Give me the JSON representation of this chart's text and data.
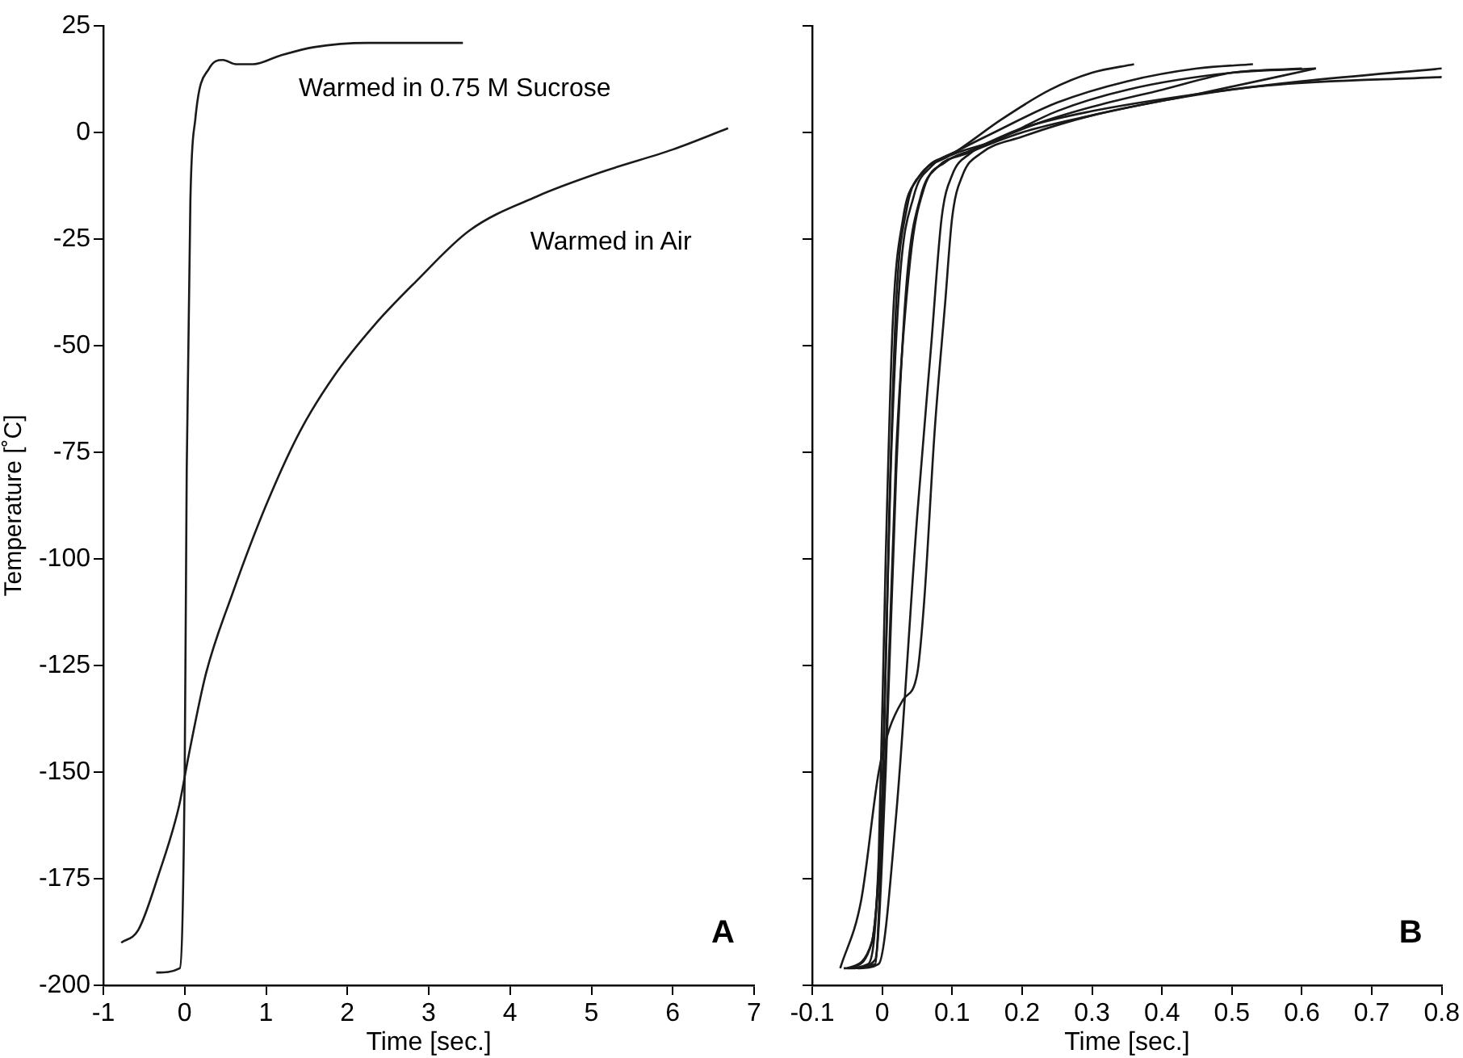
{
  "chart_data": [
    {
      "type": "line",
      "xlabel": "Time [sec.]",
      "ylabel": "Temperature [˚C]",
      "xlim": [
        -1,
        7
      ],
      "xticks": [
        -1,
        0,
        1,
        2,
        3,
        4,
        5,
        6,
        7
      ],
      "ylim": [
        -200,
        25
      ],
      "yticks": [
        -200,
        -175,
        -150,
        -125,
        -100,
        -75,
        -50,
        -25,
        0,
        25
      ],
      "grid": false,
      "legend": false,
      "annotations": [
        "A"
      ],
      "series": [
        {
          "name": "Warmed in 0.75 M Sucrose",
          "color": "#1a1a1a",
          "x": [
            -0.35,
            -0.06,
            0,
            0.025,
            0.07,
            0.13,
            0.3,
            0.47,
            0.63,
            0.84,
            1.17,
            1.59,
            2.25,
            3.42
          ],
          "values": [
            -197,
            -196,
            -150,
            -79,
            -16,
            3,
            15,
            17,
            16,
            16,
            18,
            20,
            21,
            21
          ]
        },
        {
          "name": "Warmed in Air",
          "color": "#1a1a1a",
          "x": [
            -0.78,
            -0.57,
            -0.32,
            -0.07,
            0.05,
            0.26,
            0.59,
            1.01,
            1.42,
            1.84,
            2.34,
            2.84,
            3.5,
            4.33,
            5.17,
            6,
            6.68
          ],
          "values": [
            -190,
            -187,
            -174,
            -158,
            -146,
            -127,
            -108,
            -87,
            -70,
            -57,
            -45,
            -35,
            -23,
            -15,
            -9,
            -4,
            1
          ]
        }
      ]
    },
    {
      "type": "line",
      "xlabel": "Time [sec.]",
      "xlim": [
        -0.1,
        0.8
      ],
      "xticks": [
        -0.1,
        0,
        0.1,
        0.2,
        0.3,
        0.4,
        0.5,
        0.6,
        0.7,
        0.8
      ],
      "ylim": [
        -200,
        25
      ],
      "yticks": [
        -200,
        -175,
        -150,
        -125,
        -100,
        -75,
        -50,
        -25,
        0,
        25
      ],
      "tick_labels": "x",
      "grid": false,
      "legend": false,
      "annotations": [
        "B"
      ],
      "series": [
        {
          "color": "#1a1a1a",
          "x": [
            -0.055,
            -0.02,
            -0.005,
            0.005,
            0.015,
            0.03,
            0.05,
            0.09,
            0.16,
            0.25,
            0.35,
            0.5,
            0.62
          ],
          "values": [
            -196,
            -195,
            -170,
            -100,
            -45,
            -20,
            -11,
            -6,
            -2,
            5,
            10,
            14,
            15
          ]
        },
        {
          "color": "#1a1a1a",
          "x": [
            -0.05,
            -0.01,
            0,
            0.01,
            0.02,
            0.035,
            0.06,
            0.1,
            0.16,
            0.25,
            0.35,
            0.45,
            0.53
          ],
          "values": [
            -196,
            -195,
            -160,
            -90,
            -40,
            -18,
            -9,
            -5,
            0,
            7,
            12,
            15,
            16
          ]
        },
        {
          "color": "#1a1a1a",
          "x": [
            -0.045,
            -0.015,
            0,
            0.012,
            0.025,
            0.045,
            0.07,
            0.11,
            0.17,
            0.24,
            0.3,
            0.36
          ],
          "values": [
            -196,
            -190,
            -155,
            -80,
            -35,
            -15,
            -8,
            -4,
            3,
            10,
            14,
            16
          ]
        },
        {
          "color": "#1a1a1a",
          "x": [
            -0.04,
            -0.01,
            0.005,
            0.02,
            0.035,
            0.055,
            0.08,
            0.12,
            0.2,
            0.3,
            0.42,
            0.55,
            0.8
          ],
          "values": [
            -196,
            -194,
            -150,
            -80,
            -35,
            -15,
            -8,
            -5,
            0,
            4,
            8,
            11,
            13
          ]
        },
        {
          "color": "#1a1a1a",
          "x": [
            -0.05,
            -0.015,
            0.005,
            0.02,
            0.04,
            0.06,
            0.09,
            0.13,
            0.2,
            0.3,
            0.45,
            0.6,
            0.8
          ],
          "values": [
            -196,
            -190,
            -145,
            -75,
            -30,
            -13,
            -7,
            -4,
            1,
            5,
            9,
            12,
            15
          ]
        },
        {
          "color": "#1a1a1a",
          "x": [
            -0.035,
            -0.005,
            0.02,
            0.05,
            0.07,
            0.085,
            0.1,
            0.125,
            0.16,
            0.22,
            0.3,
            0.4,
            0.5,
            0.6
          ],
          "values": [
            -196,
            -195,
            -160,
            -90,
            -50,
            -20,
            -10,
            -5,
            -2,
            2,
            6,
            10,
            14,
            15
          ]
        },
        {
          "color": "#1a1a1a",
          "x": [
            -0.06,
            -0.03,
            -0.005,
            0.01,
            0.03,
            0.05,
            0.06,
            0.075,
            0.09,
            0.1,
            0.115,
            0.14,
            0.2,
            0.3,
            0.45,
            0.62
          ],
          "values": [
            -196,
            -180,
            -150,
            -140,
            -133,
            -127,
            -110,
            -70,
            -40,
            -20,
            -10,
            -5,
            -1,
            4,
            9,
            15
          ]
        }
      ]
    }
  ]
}
